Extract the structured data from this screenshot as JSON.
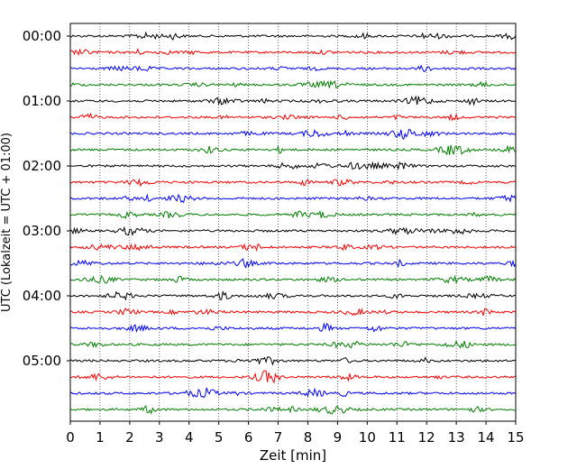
{
  "chart_data": {
    "type": "line",
    "title": "",
    "xlabel": "Zeit  [min]",
    "ylabel": "UTC (Lokalzeit = UTC + 01:00)",
    "xlim": [
      0,
      15
    ],
    "x_ticks": [
      "0",
      "1",
      "2",
      "3",
      "4",
      "5",
      "6",
      "7",
      "8",
      "9",
      "10",
      "11",
      "12",
      "13",
      "14",
      "15"
    ],
    "y_ticks": [
      "00:00",
      "01:00",
      "02:00",
      "03:00",
      "04:00",
      "05:00"
    ],
    "grid": "vertical dotted",
    "trace_colors": [
      "#000000",
      "#ff0000",
      "#0000ff",
      "#008000"
    ],
    "trace_count": 24,
    "trace_interval_min": 15,
    "traces_per_hour": 4
  }
}
